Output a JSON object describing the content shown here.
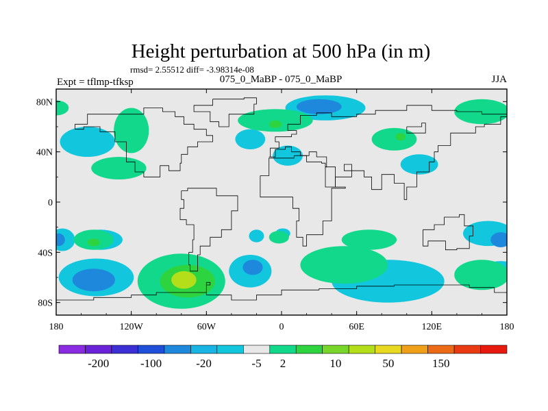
{
  "chart_data": {
    "type": "contour-map",
    "title": "Height perturbation at 500 hPa (in m)",
    "stats": "rmsd= 2.55512 diff= -3.98314e-08",
    "left_label": "Expt = tflmp-tfksp",
    "center_label": "075_0_MaBP - 075_0_MaBP",
    "right_label": "JJA",
    "x_axis": {
      "range": [
        -180,
        180
      ],
      "ticks": [
        -180,
        -120,
        -60,
        0,
        60,
        120,
        180
      ],
      "tick_labels": [
        "180",
        "120W",
        "60W",
        "0",
        "60E",
        "120E",
        "180"
      ]
    },
    "y_axis": {
      "range": [
        -90,
        90
      ],
      "ticks": [
        80,
        40,
        0,
        -40,
        -80
      ],
      "tick_labels": [
        "80N",
        "40N",
        "0",
        "40S",
        "80S"
      ]
    },
    "colorbar": {
      "colors": [
        "#8a2be2",
        "#6a22d8",
        "#3a2ed4",
        "#1f4fd8",
        "#1e88dc",
        "#18b4e3",
        "#12c6dd",
        "#e8e8e8",
        "#12d88c",
        "#2ed43f",
        "#78d62a",
        "#b4de1a",
        "#e8d820",
        "#f0a018",
        "#ec6a16",
        "#ea3a12",
        "#e81a10"
      ],
      "labels": [
        "-200",
        "-100",
        "-20",
        "-5",
        "2",
        "10",
        "50",
        "150"
      ],
      "label_positions": [
        1.5,
        3.5,
        5.5,
        7.5,
        8.5,
        10.5,
        12.5,
        14.5
      ]
    },
    "fields": [
      {
        "level": "cyan",
        "color": "#12c6dd",
        "blobs": [
          [
            -155,
            48,
            22,
            12
          ],
          [
            -148,
            -60,
            30,
            15
          ],
          [
            -175,
            -30,
            10,
            9
          ],
          [
            -145,
            -30,
            18,
            8
          ],
          [
            -25,
            -55,
            17,
            13
          ],
          [
            -25,
            50,
            12,
            8
          ],
          [
            5,
            37,
            12,
            8
          ],
          [
            35,
            75,
            32,
            10
          ],
          [
            110,
            30,
            15,
            8
          ],
          [
            85,
            -63,
            45,
            17
          ],
          [
            165,
            -25,
            20,
            10
          ],
          [
            175,
            -55,
            15,
            8
          ],
          [
            -20,
            -27,
            6,
            5
          ],
          [
            1,
            -25,
            6,
            4
          ]
        ]
      },
      {
        "level": "blue",
        "color": "#1e88dc",
        "blobs": [
          [
            -150,
            -62,
            17,
            9
          ],
          [
            -23,
            -52,
            8,
            6
          ],
          [
            30,
            76,
            18,
            6
          ],
          [
            175,
            -30,
            8,
            6
          ],
          [
            -178,
            -30,
            5,
            5
          ]
        ]
      },
      {
        "level": "green",
        "color": "#12d88c",
        "blobs": [
          [
            -130,
            27,
            22,
            9
          ],
          [
            -120,
            57,
            14,
            18
          ],
          [
            -80,
            -63,
            35,
            22
          ],
          [
            -180,
            75,
            10,
            6
          ],
          [
            -5,
            65,
            30,
            9
          ],
          [
            -150,
            -30,
            16,
            8
          ],
          [
            90,
            50,
            18,
            9
          ],
          [
            160,
            72,
            22,
            10
          ],
          [
            160,
            -58,
            22,
            12
          ],
          [
            50,
            -50,
            35,
            15
          ],
          [
            70,
            -30,
            22,
            8
          ],
          [
            -2,
            -28,
            8,
            5
          ]
        ]
      },
      {
        "level": "darkgreen",
        "color": "#2ed43f",
        "blobs": [
          [
            -75,
            -63,
            22,
            13
          ],
          [
            -150,
            -32,
            5,
            3
          ],
          [
            95,
            52,
            4,
            3
          ],
          [
            -5,
            62,
            5,
            3
          ]
        ]
      },
      {
        "level": "yellowgreen",
        "color": "#b4de1a",
        "blobs": [
          [
            -78,
            -62,
            10,
            7
          ]
        ]
      }
    ],
    "coastlines": [
      {
        "name": "North America",
        "points": [
          [
            -165,
            62
          ],
          [
            -155,
            70
          ],
          [
            -140,
            70
          ],
          [
            -125,
            70
          ],
          [
            -110,
            75
          ],
          [
            -95,
            72
          ],
          [
            -85,
            68
          ],
          [
            -78,
            62
          ],
          [
            -70,
            58
          ],
          [
            -60,
            53
          ],
          [
            -55,
            48
          ],
          [
            -67,
            44
          ],
          [
            -75,
            38
          ],
          [
            -80,
            31
          ],
          [
            -81,
            25
          ],
          [
            -90,
            29
          ],
          [
            -97,
            26
          ],
          [
            -97,
            20
          ],
          [
            -105,
            20
          ],
          [
            -110,
            24
          ],
          [
            -117,
            32
          ],
          [
            -124,
            42
          ],
          [
            -124,
            48
          ],
          [
            -133,
            56
          ],
          [
            -145,
            60
          ],
          [
            -158,
            58
          ],
          [
            -165,
            62
          ]
        ]
      },
      {
        "name": "Greenland",
        "points": [
          [
            -55,
            82
          ],
          [
            -30,
            83
          ],
          [
            -20,
            78
          ],
          [
            -22,
            70
          ],
          [
            -42,
            60
          ],
          [
            -50,
            64
          ],
          [
            -57,
            72
          ],
          [
            -70,
            77
          ],
          [
            -55,
            82
          ]
        ]
      },
      {
        "name": "Eurasia",
        "points": [
          [
            -10,
            36
          ],
          [
            -9,
            43
          ],
          [
            -2,
            48
          ],
          [
            -5,
            52
          ],
          [
            8,
            54
          ],
          [
            12,
            57
          ],
          [
            5,
            62
          ],
          [
            15,
            69
          ],
          [
            28,
            71
          ],
          [
            40,
            68
          ],
          [
            60,
            70
          ],
          [
            75,
            73
          ],
          [
            100,
            77
          ],
          [
            120,
            73
          ],
          [
            140,
            72
          ],
          [
            160,
            70
          ],
          [
            180,
            68
          ],
          [
            175,
            62
          ],
          [
            162,
            60
          ],
          [
            155,
            55
          ],
          [
            140,
            55
          ],
          [
            135,
            45
          ],
          [
            125,
            40
          ],
          [
            122,
            32
          ],
          [
            118,
            24
          ],
          [
            108,
            20
          ],
          [
            108,
            12
          ],
          [
            100,
            2
          ],
          [
            98,
            15
          ],
          [
            90,
            22
          ],
          [
            80,
            10
          ],
          [
            72,
            20
          ],
          [
            66,
            25
          ],
          [
            57,
            25
          ],
          [
            50,
            30
          ],
          [
            56,
            20
          ],
          [
            43,
            12
          ],
          [
            35,
            28
          ],
          [
            36,
            36
          ],
          [
            28,
            40
          ],
          [
            22,
            37
          ],
          [
            15,
            40
          ],
          [
            8,
            44
          ],
          [
            3,
            42
          ],
          [
            -5,
            36
          ],
          [
            -10,
            36
          ]
        ]
      },
      {
        "name": "Africa",
        "points": [
          [
            -17,
            21
          ],
          [
            -10,
            35
          ],
          [
            10,
            37
          ],
          [
            20,
            32
          ],
          [
            32,
            31
          ],
          [
            35,
            28
          ],
          [
            43,
            12
          ],
          [
            51,
            11
          ],
          [
            40,
            -2
          ],
          [
            40,
            -15
          ],
          [
            33,
            -26
          ],
          [
            20,
            -35
          ],
          [
            17,
            -28
          ],
          [
            12,
            -15
          ],
          [
            14,
            -5
          ],
          [
            9,
            4
          ],
          [
            -8,
            4
          ],
          [
            -17,
            14
          ],
          [
            -17,
            21
          ]
        ]
      },
      {
        "name": "South America",
        "points": [
          [
            -80,
            9
          ],
          [
            -75,
            11
          ],
          [
            -62,
            11
          ],
          [
            -52,
            5
          ],
          [
            -35,
            -7
          ],
          [
            -40,
            -22
          ],
          [
            -48,
            -28
          ],
          [
            -57,
            -35
          ],
          [
            -65,
            -42
          ],
          [
            -67,
            -55
          ],
          [
            -73,
            -50
          ],
          [
            -74,
            -40
          ],
          [
            -71,
            -30
          ],
          [
            -70,
            -18
          ],
          [
            -76,
            -14
          ],
          [
            -81,
            -5
          ],
          [
            -78,
            2
          ],
          [
            -80,
            9
          ]
        ]
      },
      {
        "name": "Australia",
        "points": [
          [
            113,
            -22
          ],
          [
            122,
            -18
          ],
          [
            130,
            -12
          ],
          [
            137,
            -12
          ],
          [
            142,
            -10
          ],
          [
            146,
            -19
          ],
          [
            153,
            -27
          ],
          [
            150,
            -37
          ],
          [
            140,
            -38
          ],
          [
            131,
            -31
          ],
          [
            117,
            -35
          ],
          [
            113,
            -22
          ]
        ]
      },
      {
        "name": "Antarctica",
        "points": [
          [
            -180,
            -78
          ],
          [
            -150,
            -76
          ],
          [
            -120,
            -74
          ],
          [
            -100,
            -72
          ],
          [
            -75,
            -72
          ],
          [
            -60,
            -64
          ],
          [
            -57,
            -66
          ],
          [
            -60,
            -74
          ],
          [
            -40,
            -78
          ],
          [
            -20,
            -74
          ],
          [
            0,
            -70
          ],
          [
            30,
            -69
          ],
          [
            60,
            -67
          ],
          [
            90,
            -66
          ],
          [
            120,
            -66
          ],
          [
            150,
            -68
          ],
          [
            170,
            -72
          ],
          [
            180,
            -78
          ]
        ]
      },
      {
        "name": "Siberian plateau",
        "points": [
          [
            100,
            60
          ],
          [
            112,
            63
          ],
          [
            115,
            55
          ],
          [
            100,
            55
          ],
          [
            100,
            60
          ]
        ]
      }
    ]
  }
}
